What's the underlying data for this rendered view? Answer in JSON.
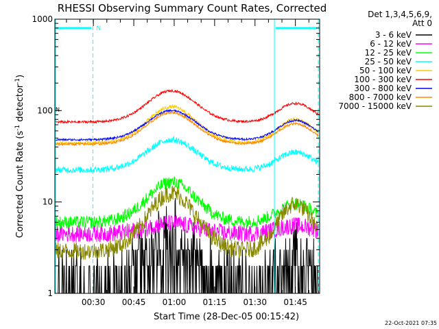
{
  "chart_data": {
    "type": "line",
    "title": "RHESSI Observing Summary Count Rates, Corrected",
    "xlabel": "Start Time (28-Dec-05 00:15:42)",
    "ylabel_main": "Corrected Count Rate (s",
    "ylabel_sup1": "-1",
    "ylabel_mid": " detector",
    "ylabel_sup2": "-1",
    "ylabel_end": ")",
    "y_scale": "log",
    "ylim": [
      1,
      1000
    ],
    "y_ticks": [
      "1",
      "10",
      "100",
      "1000"
    ],
    "x_range_minutes": [
      15.7,
      114.0
    ],
    "x_ticks": [
      {
        "minute": 30,
        "label": "00:30"
      },
      {
        "minute": 45,
        "label": "00:45"
      },
      {
        "minute": 60,
        "label": "01:00"
      },
      {
        "minute": 75,
        "label": "01:15"
      },
      {
        "minute": 90,
        "label": "01:30"
      },
      {
        "minute": 105,
        "label": "01:45"
      }
    ],
    "legend_header": [
      "Det 1,3,4,5,6,9,",
      "Att 0"
    ],
    "series": [
      {
        "name": "3 - 6 keV",
        "color": "#000000",
        "base": 1.3,
        "peak1": 4.2,
        "peak2": 2.6,
        "noise": 0.7
      },
      {
        "name": "6 - 12 keV",
        "color": "#ff00ff",
        "base": 4.5,
        "peak1": 5.8,
        "peak2": 5.5,
        "noise": 0.22
      },
      {
        "name": "12 - 25 keV",
        "color": "#00ff00",
        "base": 6.0,
        "peak1": 16.5,
        "peak2": 9.5,
        "noise": 0.16
      },
      {
        "name": "25 - 50 keV",
        "color": "#00ffff",
        "base": 22.5,
        "peak1": 48,
        "peak2": 35,
        "noise": 0.08
      },
      {
        "name": "50 - 100 keV",
        "color": "#ffcc00",
        "base": 44,
        "peak1": 110,
        "peak2": 80,
        "noise": 0.045
      },
      {
        "name": "100 - 300 keV",
        "color": "#ff0000",
        "base": 75,
        "peak1": 165,
        "peak2": 120,
        "noise": 0.03
      },
      {
        "name": "300 - 800 keV",
        "color": "#0000ff",
        "base": 48,
        "peak1": 100,
        "peak2": 78,
        "noise": 0.025
      },
      {
        "name": "800 - 7000 keV",
        "color": "#ff8800",
        "base": 43,
        "peak1": 95,
        "peak2": 72,
        "noise": 0.03
      },
      {
        "name": "7000 - 15000 keV",
        "color": "#888800",
        "base": 2.9,
        "peak1": 12.5,
        "peak2": 9.5,
        "noise": 0.22
      }
    ],
    "annotations": {
      "saa_label": "N",
      "night_label": "N"
    }
  },
  "footer": {
    "timestamp": "22-Oct-2021 07:35"
  }
}
